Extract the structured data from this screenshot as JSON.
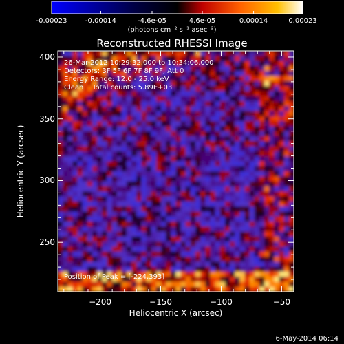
{
  "colorbar": {
    "tick_labels": [
      "-0.00023",
      "-0.00014",
      "-4.6e-05",
      "4.6e-05",
      "0.00014",
      "0.00023"
    ],
    "tick_values": [
      -0.00023,
      -0.00014,
      -4.6e-05,
      4.6e-05,
      0.00014,
      0.00023
    ],
    "range": [
      -0.00023,
      0.00023
    ],
    "units": "(photons cm⁻² s⁻¹ asec⁻²)",
    "colors": [
      "#0000ff",
      "#000000",
      "#c00000",
      "#ff8000",
      "#ffffff"
    ]
  },
  "chart_data": {
    "type": "heatmap",
    "title": "Reconstructed RHESSI Image",
    "xlabel": "Heliocentric X (arcsec)",
    "ylabel": "Heliocentric Y (arcsec)",
    "xlim": [
      -235,
      -40
    ],
    "ylim": [
      210,
      405
    ],
    "xticks": [
      -200,
      -150,
      -100,
      -50
    ],
    "yticks": [
      250,
      300,
      350,
      400
    ],
    "xtick_labels": [
      "−200",
      "−150",
      "−100",
      "−50"
    ],
    "ytick_labels": [
      "250",
      "300",
      "350",
      "400"
    ],
    "annotations": [
      "26-Mar-2012 10:29:32.000 to 10:34:06.000",
      "Detectors: 3F 5F 6F 7F 8F 9F, Att 0",
      "Energy Range: 12.0 - 25.0 keV",
      "Clean    Total counts: 5.89E+03"
    ],
    "peak_label": "Position of Peak = [-224,393]",
    "peak_position": [
      -224,
      393
    ]
  },
  "footer": {
    "timestamp": "6-May-2014 06:14"
  }
}
